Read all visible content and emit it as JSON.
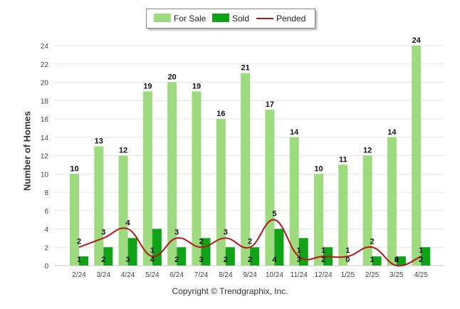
{
  "chart_data": {
    "type": "bar",
    "categories": [
      "2/24",
      "3/24",
      "4/24",
      "5/24",
      "6/24",
      "7/24",
      "8/24",
      "9/24",
      "10/24",
      "11/24",
      "12/24",
      "1/25",
      "2/25",
      "3/25",
      "4/25"
    ],
    "series": [
      {
        "name": "For Sale",
        "type": "bar",
        "color": "#9ddb7e",
        "values": [
          10,
          13,
          12,
          19,
          20,
          19,
          16,
          21,
          17,
          14,
          10,
          11,
          12,
          14,
          24
        ]
      },
      {
        "name": "Sold",
        "type": "bar",
        "color": "#10a318",
        "values": [
          1,
          2,
          3,
          4,
          2,
          3,
          2,
          2,
          4,
          3,
          2,
          0,
          1,
          1,
          2
        ]
      },
      {
        "name": "Pended",
        "type": "line",
        "color": "#b3161b",
        "values": [
          2,
          3,
          4,
          1,
          3,
          2,
          3,
          2,
          5,
          1,
          1,
          1,
          2,
          0,
          1
        ]
      }
    ],
    "ylabel": "Number of Homes",
    "xlabel": "",
    "ylim": [
      0,
      24
    ],
    "yticks": [
      0,
      2,
      4,
      6,
      8,
      10,
      12,
      14,
      16,
      18,
      20,
      22,
      24
    ],
    "grid": true,
    "legend_position": "top-center"
  },
  "legend": {
    "for_sale": "For Sale",
    "sold": "Sold",
    "pended": "Pended"
  },
  "footer": {
    "copyright": "Copyright © Trendgraphix, Inc."
  }
}
